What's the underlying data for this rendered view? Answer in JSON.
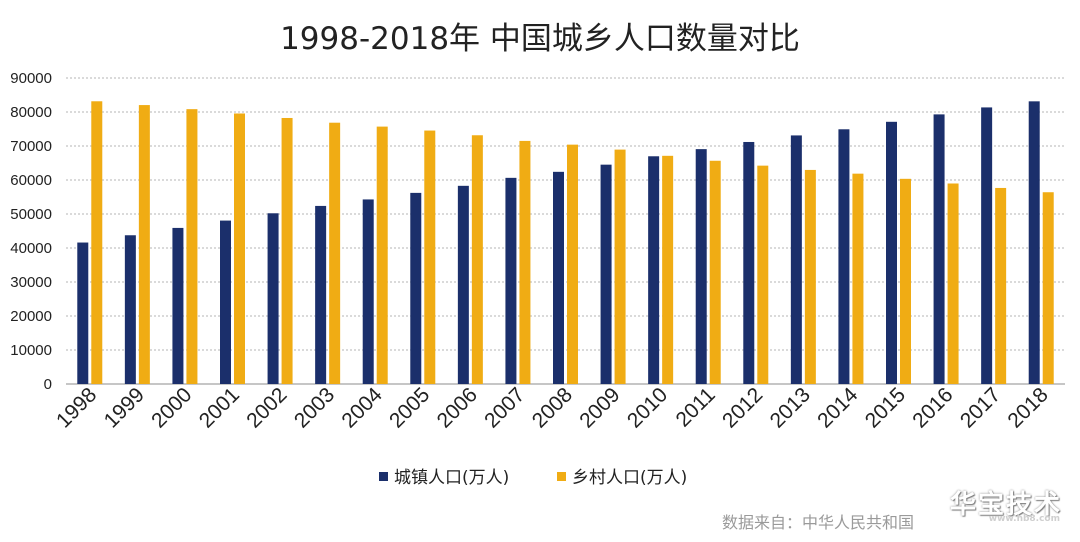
{
  "chart_data": {
    "type": "bar",
    "title": "1998-2018年 中国城乡人口数量对比",
    "categories": [
      "1998",
      "1999",
      "2000",
      "2001",
      "2002",
      "2003",
      "2004",
      "2005",
      "2006",
      "2007",
      "2008",
      "2009",
      "2010",
      "2011",
      "2012",
      "2013",
      "2014",
      "2015",
      "2016",
      "2017",
      "2018"
    ],
    "series": [
      {
        "name": "城镇人口(万人)",
        "color": "#1b2f6b",
        "values": [
          41608,
          43748,
          45906,
          48064,
          50212,
          52376,
          54283,
          56212,
          58288,
          60633,
          62403,
          64512,
          66978,
          69079,
          71182,
          73111,
          74916,
          77116,
          79298,
          81347,
          83137
        ]
      },
      {
        "name": "乡村人口(万人)",
        "color": "#f0ac14",
        "values": [
          83153,
          82038,
          80837,
          79563,
          78241,
          76851,
          75705,
          74544,
          73160,
          71496,
          70399,
          68938,
          67113,
          65656,
          64222,
          62961,
          61866,
          60346,
          58973,
          57661,
          56401
        ]
      }
    ],
    "yticks": [
      "0",
      "10000",
      "20000",
      "30000",
      "40000",
      "50000",
      "60000",
      "70000",
      "80000",
      "90000"
    ],
    "ylim": [
      0,
      90000
    ],
    "xlabel": "",
    "ylabel": "",
    "grid": true,
    "legend_position": "bottom"
  },
  "source_text": "数据来自：中华人民共和国",
  "watermark": {
    "main": "华宝技术",
    "url": "www.hb8.com"
  }
}
